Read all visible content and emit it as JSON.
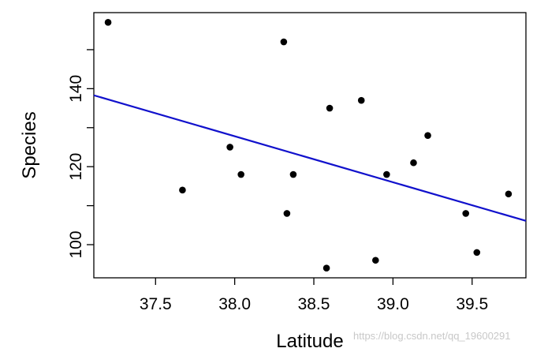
{
  "chart_data": {
    "type": "scatter",
    "title": "",
    "xlabel": "Latitude",
    "ylabel": "Species",
    "xlim": [
      37.11,
      39.84
    ],
    "ylim": [
      91.5,
      159.5
    ],
    "x_ticks": [
      37.5,
      38.0,
      38.5,
      39.0,
      39.5
    ],
    "x_tick_labels": [
      "37.5",
      "38.0",
      "38.5",
      "39.0",
      "39.5"
    ],
    "y_ticks": [
      100,
      110,
      120,
      130,
      140,
      150
    ],
    "y_tick_labels": [
      "100",
      "",
      "120",
      "",
      "140",
      ""
    ],
    "points": [
      {
        "x": 37.2,
        "y": 157
      },
      {
        "x": 37.67,
        "y": 114
      },
      {
        "x": 37.97,
        "y": 125
      },
      {
        "x": 38.04,
        "y": 118
      },
      {
        "x": 38.31,
        "y": 152
      },
      {
        "x": 38.33,
        "y": 108
      },
      {
        "x": 38.37,
        "y": 118
      },
      {
        "x": 38.58,
        "y": 94
      },
      {
        "x": 38.6,
        "y": 135
      },
      {
        "x": 38.8,
        "y": 137
      },
      {
        "x": 38.89,
        "y": 96
      },
      {
        "x": 38.96,
        "y": 118
      },
      {
        "x": 39.13,
        "y": 121
      },
      {
        "x": 39.22,
        "y": 128
      },
      {
        "x": 39.46,
        "y": 108
      },
      {
        "x": 39.53,
        "y": 98
      },
      {
        "x": 39.73,
        "y": 113
      }
    ],
    "fit_line": {
      "x": [
        37.11,
        39.84
      ],
      "y": [
        138.3,
        106.1
      ]
    },
    "point_color": "#000000",
    "line_color": "#1111cc",
    "grid": false,
    "legend": "none"
  },
  "watermark": "https://blog.csdn.net/qq_19600291"
}
